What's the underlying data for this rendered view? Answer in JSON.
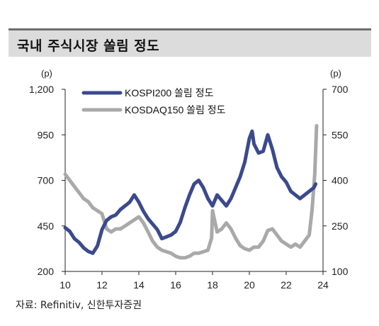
{
  "title": "국내 주식시장 쏠림 정도",
  "source": "자료: Refinitiv, 신한투자증권",
  "chart_data": {
    "type": "line",
    "left_unit": "(p)",
    "right_unit": "(p)",
    "x_ticks": [
      "10",
      "12",
      "14",
      "16",
      "18",
      "20",
      "22",
      "24"
    ],
    "xlim": [
      10,
      24
    ],
    "left_ticks": [
      "1,200",
      "950",
      "700",
      "450",
      "200"
    ],
    "left_ylim": [
      200,
      1200
    ],
    "right_ticks": [
      "700",
      "550",
      "400",
      "250",
      "100"
    ],
    "right_ylim": [
      100,
      700
    ],
    "grid": false,
    "legend_position": "top-left",
    "series": [
      {
        "name": "KOSPI200 쏠림 정도",
        "axis": "left",
        "color": "#3b4a8c",
        "x": [
          10.0,
          10.25,
          10.5,
          10.75,
          11.0,
          11.25,
          11.5,
          11.75,
          12.0,
          12.25,
          12.5,
          12.75,
          13.0,
          13.25,
          13.5,
          13.75,
          14.0,
          14.25,
          14.5,
          14.75,
          15.0,
          15.25,
          15.5,
          15.75,
          16.0,
          16.25,
          16.5,
          16.75,
          17.0,
          17.25,
          17.5,
          17.75,
          18.0,
          18.25,
          18.5,
          18.75,
          19.0,
          19.25,
          19.5,
          19.75,
          20.0,
          20.15,
          20.25,
          20.5,
          20.75,
          21.0,
          21.25,
          21.5,
          21.75,
          22.0,
          22.25,
          22.5,
          22.75,
          23.0,
          23.25,
          23.5,
          23.6
        ],
        "y": [
          440,
          420,
          380,
          360,
          330,
          310,
          300,
          340,
          430,
          480,
          500,
          510,
          540,
          560,
          580,
          620,
          580,
          530,
          490,
          460,
          430,
          380,
          390,
          400,
          420,
          470,
          550,
          620,
          680,
          700,
          660,
          600,
          560,
          620,
          590,
          560,
          600,
          660,
          720,
          800,
          930,
          970,
          900,
          850,
          860,
          950,
          870,
          770,
          720,
          690,
          640,
          620,
          600,
          620,
          640,
          660,
          680
        ]
      },
      {
        "name": "KOSDAQ150 쏠림 정도",
        "axis": "right",
        "color": "#a9a9a9",
        "x": [
          10.0,
          10.25,
          10.5,
          10.75,
          11.0,
          11.25,
          11.5,
          11.75,
          12.0,
          12.25,
          12.5,
          12.75,
          13.0,
          13.25,
          13.5,
          13.75,
          14.0,
          14.25,
          14.5,
          14.75,
          15.0,
          15.25,
          15.5,
          15.75,
          16.0,
          16.25,
          16.5,
          16.75,
          17.0,
          17.25,
          17.5,
          17.75,
          17.95,
          18.0,
          18.25,
          18.5,
          18.75,
          19.0,
          19.25,
          19.5,
          19.75,
          20.0,
          20.25,
          20.5,
          20.75,
          21.0,
          21.25,
          21.5,
          21.75,
          22.0,
          22.25,
          22.5,
          22.75,
          23.0,
          23.25,
          23.4,
          23.55,
          23.65
        ],
        "y": [
          420,
          400,
          380,
          360,
          340,
          330,
          310,
          300,
          290,
          240,
          230,
          240,
          240,
          250,
          260,
          270,
          280,
          260,
          230,
          200,
          180,
          170,
          165,
          160,
          150,
          145,
          145,
          150,
          160,
          160,
          165,
          170,
          210,
          300,
          230,
          240,
          260,
          240,
          210,
          185,
          175,
          170,
          180,
          180,
          200,
          235,
          240,
          220,
          200,
          190,
          180,
          190,
          180,
          200,
          220,
          300,
          420,
          580
        ]
      }
    ]
  }
}
